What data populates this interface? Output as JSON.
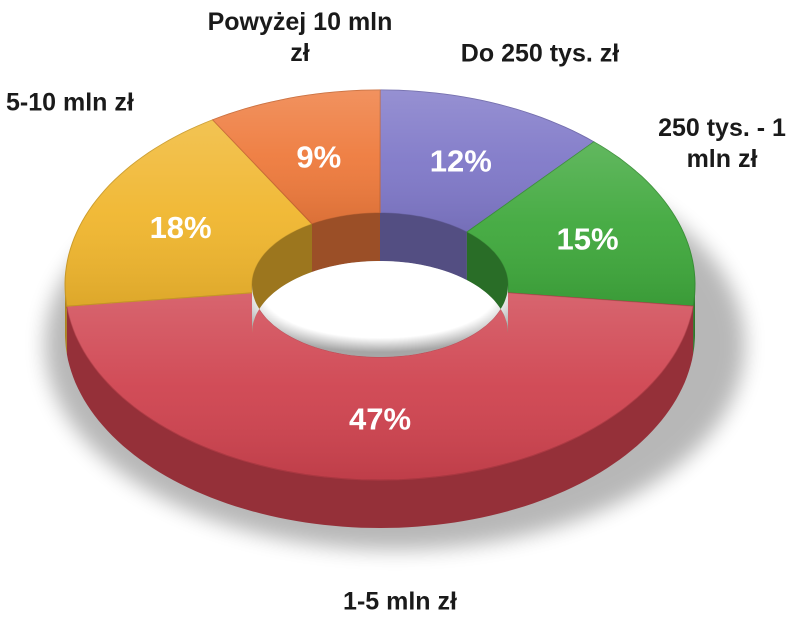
{
  "chart_data": {
    "type": "pie",
    "title": "",
    "donut": true,
    "style": "3d",
    "categories": [
      "Do 250 tys. zł",
      "250 tys. - 1 mln zł",
      "1-5 mln zł",
      "5-10 mln zł",
      "Powyżej 10 mln zł"
    ],
    "values": [
      12,
      15,
      47,
      18,
      9
    ],
    "value_labels": [
      "12%",
      "15%",
      "47%",
      "18%",
      "9%"
    ],
    "colors": [
      "#7f78c8",
      "#3fa83c",
      "#cf434f",
      "#f0b62e",
      "#ee7a3c"
    ],
    "legend": "none"
  }
}
